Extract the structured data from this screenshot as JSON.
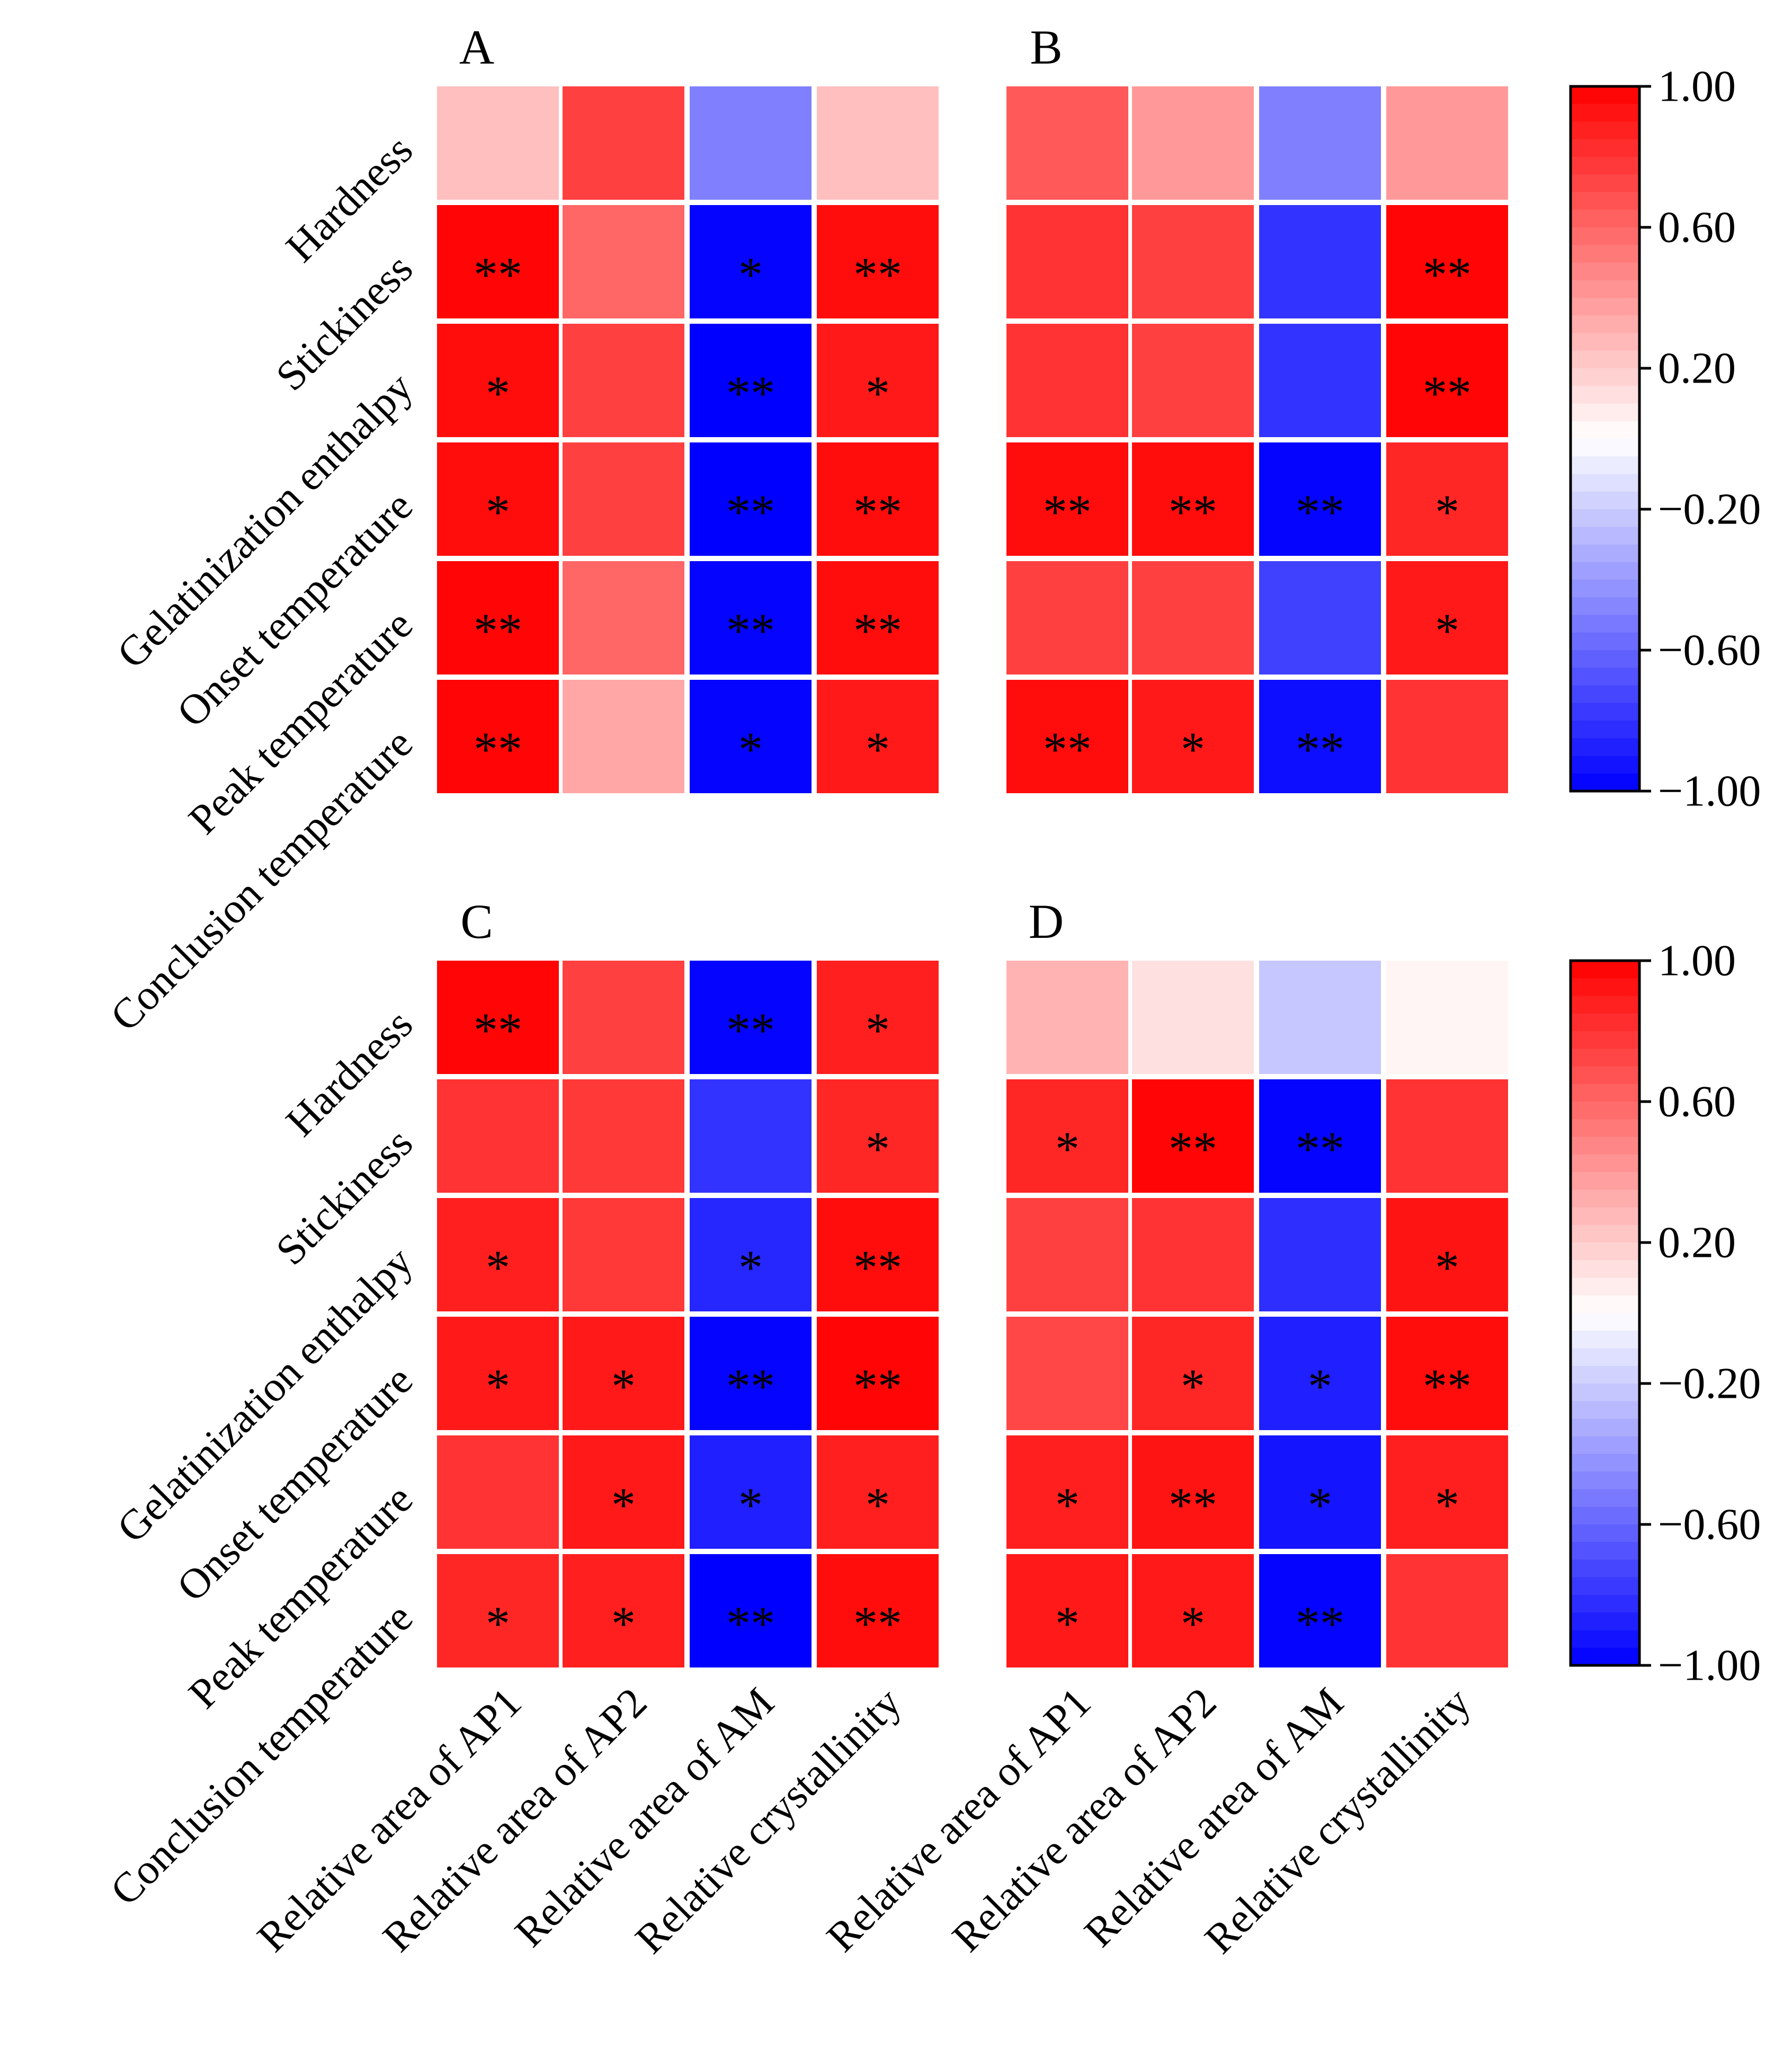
{
  "chart_data": [
    {
      "type": "heatmap",
      "panel": "A",
      "title": "A",
      "rows": [
        "Hardness",
        "Stickiness",
        "Gelatinization enthalpy",
        "Onset temperature",
        "Peak temperature",
        "Conclusion temperature"
      ],
      "columns": [
        "Relative area of AP1",
        "Relative area of AP2",
        "Relative area of AM",
        "Relative crystallinity"
      ],
      "values": [
        [
          0.25,
          0.75,
          -0.5,
          0.25
        ],
        [
          0.98,
          0.6,
          -0.98,
          0.95
        ],
        [
          0.95,
          0.75,
          -1.0,
          0.9
        ],
        [
          0.95,
          0.75,
          -1.0,
          0.95
        ],
        [
          0.98,
          0.6,
          -0.98,
          0.95
        ],
        [
          0.98,
          0.35,
          -0.98,
          0.9
        ]
      ],
      "significance": [
        [
          "",
          "",
          "",
          ""
        ],
        [
          "**",
          "",
          "*",
          "**"
        ],
        [
          "*",
          "",
          "**",
          "*"
        ],
        [
          "*",
          "",
          "**",
          "**"
        ],
        [
          "**",
          "",
          "**",
          "**"
        ],
        [
          "**",
          "",
          "*",
          "*"
        ]
      ],
      "colorbar": {
        "min": -1.0,
        "max": 1.0,
        "ticks": [
          "1.00",
          "0.60",
          "0.20",
          "−0.20",
          "−0.60",
          "−1.00"
        ]
      }
    },
    {
      "type": "heatmap",
      "panel": "B",
      "title": "B",
      "rows": [
        "Hardness",
        "Stickiness",
        "Gelatinization enthalpy",
        "Onset temperature",
        "Peak temperature",
        "Conclusion temperature"
      ],
      "columns": [
        "Relative area of AP1",
        "Relative area of AP2",
        "Relative area of AM",
        "Relative crystallinity"
      ],
      "values": [
        [
          0.65,
          0.4,
          -0.5,
          0.4
        ],
        [
          0.8,
          0.75,
          -0.8,
          0.98
        ],
        [
          0.8,
          0.75,
          -0.8,
          0.98
        ],
        [
          0.95,
          0.95,
          -0.98,
          0.85
        ],
        [
          0.75,
          0.75,
          -0.75,
          0.9
        ],
        [
          0.95,
          0.9,
          -0.95,
          0.8
        ]
      ],
      "significance": [
        [
          "",
          "",
          "",
          ""
        ],
        [
          "",
          "",
          "",
          "**"
        ],
        [
          "",
          "",
          "",
          "**"
        ],
        [
          "**",
          "**",
          "**",
          "*"
        ],
        [
          "",
          "",
          "",
          "*"
        ],
        [
          "**",
          "*",
          "**",
          ""
        ]
      ]
    },
    {
      "type": "heatmap",
      "panel": "C",
      "title": "C",
      "rows": [
        "Hardness",
        "Stickiness",
        "Gelatinization enthalpy",
        "Onset temperature",
        "Peak temperature",
        "Conclusion temperature"
      ],
      "columns": [
        "Relative area of AP1",
        "Relative area of AP2",
        "Relative area of AM",
        "Relative crystallinity"
      ],
      "values": [
        [
          0.98,
          0.75,
          -0.98,
          0.88
        ],
        [
          0.8,
          0.78,
          -0.8,
          0.85
        ],
        [
          0.88,
          0.78,
          -0.85,
          0.95
        ],
        [
          0.9,
          0.9,
          -0.98,
          0.98
        ],
        [
          0.8,
          0.9,
          -0.88,
          0.88
        ],
        [
          0.85,
          0.88,
          -1.0,
          0.95
        ]
      ],
      "significance": [
        [
          "**",
          "",
          "**",
          "*"
        ],
        [
          "",
          "",
          "",
          "*"
        ],
        [
          "*",
          "",
          "*",
          "**"
        ],
        [
          "*",
          "*",
          "**",
          "**"
        ],
        [
          "",
          "*",
          "*",
          "*"
        ],
        [
          "*",
          "*",
          "**",
          "**"
        ]
      ],
      "colorbar": {
        "min": -1.0,
        "max": 1.0,
        "ticks": [
          "1.00",
          "0.60",
          "0.20",
          "−0.20",
          "−0.60",
          "−1.00"
        ]
      }
    },
    {
      "type": "heatmap",
      "panel": "D",
      "title": "D",
      "rows": [
        "Hardness",
        "Stickiness",
        "Gelatinization enthalpy",
        "Onset temperature",
        "Peak temperature",
        "Conclusion temperature"
      ],
      "columns": [
        "Relative area of AP1",
        "Relative area of AP2",
        "Relative area of AM",
        "Relative crystallinity"
      ],
      "values": [
        [
          0.3,
          0.12,
          -0.22,
          0.04
        ],
        [
          0.85,
          0.98,
          -0.98,
          0.8
        ],
        [
          0.75,
          0.8,
          -0.82,
          0.92
        ],
        [
          0.72,
          0.85,
          -0.88,
          0.95
        ],
        [
          0.88,
          0.92,
          -0.92,
          0.88
        ],
        [
          0.9,
          0.9,
          -0.98,
          0.8
        ]
      ],
      "significance": [
        [
          "",
          "",
          "",
          ""
        ],
        [
          "*",
          "**",
          "**",
          ""
        ],
        [
          "",
          "",
          "",
          "*"
        ],
        [
          "",
          "*",
          "*",
          "**"
        ],
        [
          "*",
          "**",
          "*",
          "*"
        ],
        [
          "*",
          "*",
          "**",
          ""
        ]
      ]
    }
  ]
}
